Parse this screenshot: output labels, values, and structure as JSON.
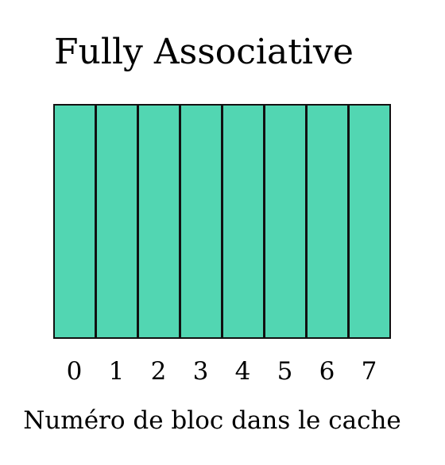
{
  "title": "Fully Associative",
  "blocks": [
    {
      "label": "0"
    },
    {
      "label": "1"
    },
    {
      "label": "2"
    },
    {
      "label": "3"
    },
    {
      "label": "4"
    },
    {
      "label": "5"
    },
    {
      "label": "6"
    },
    {
      "label": "7"
    }
  ],
  "caption": "Numéro de bloc dans le cache",
  "colors": {
    "block_fill": "#52d6b2",
    "block_border": "#111111"
  }
}
